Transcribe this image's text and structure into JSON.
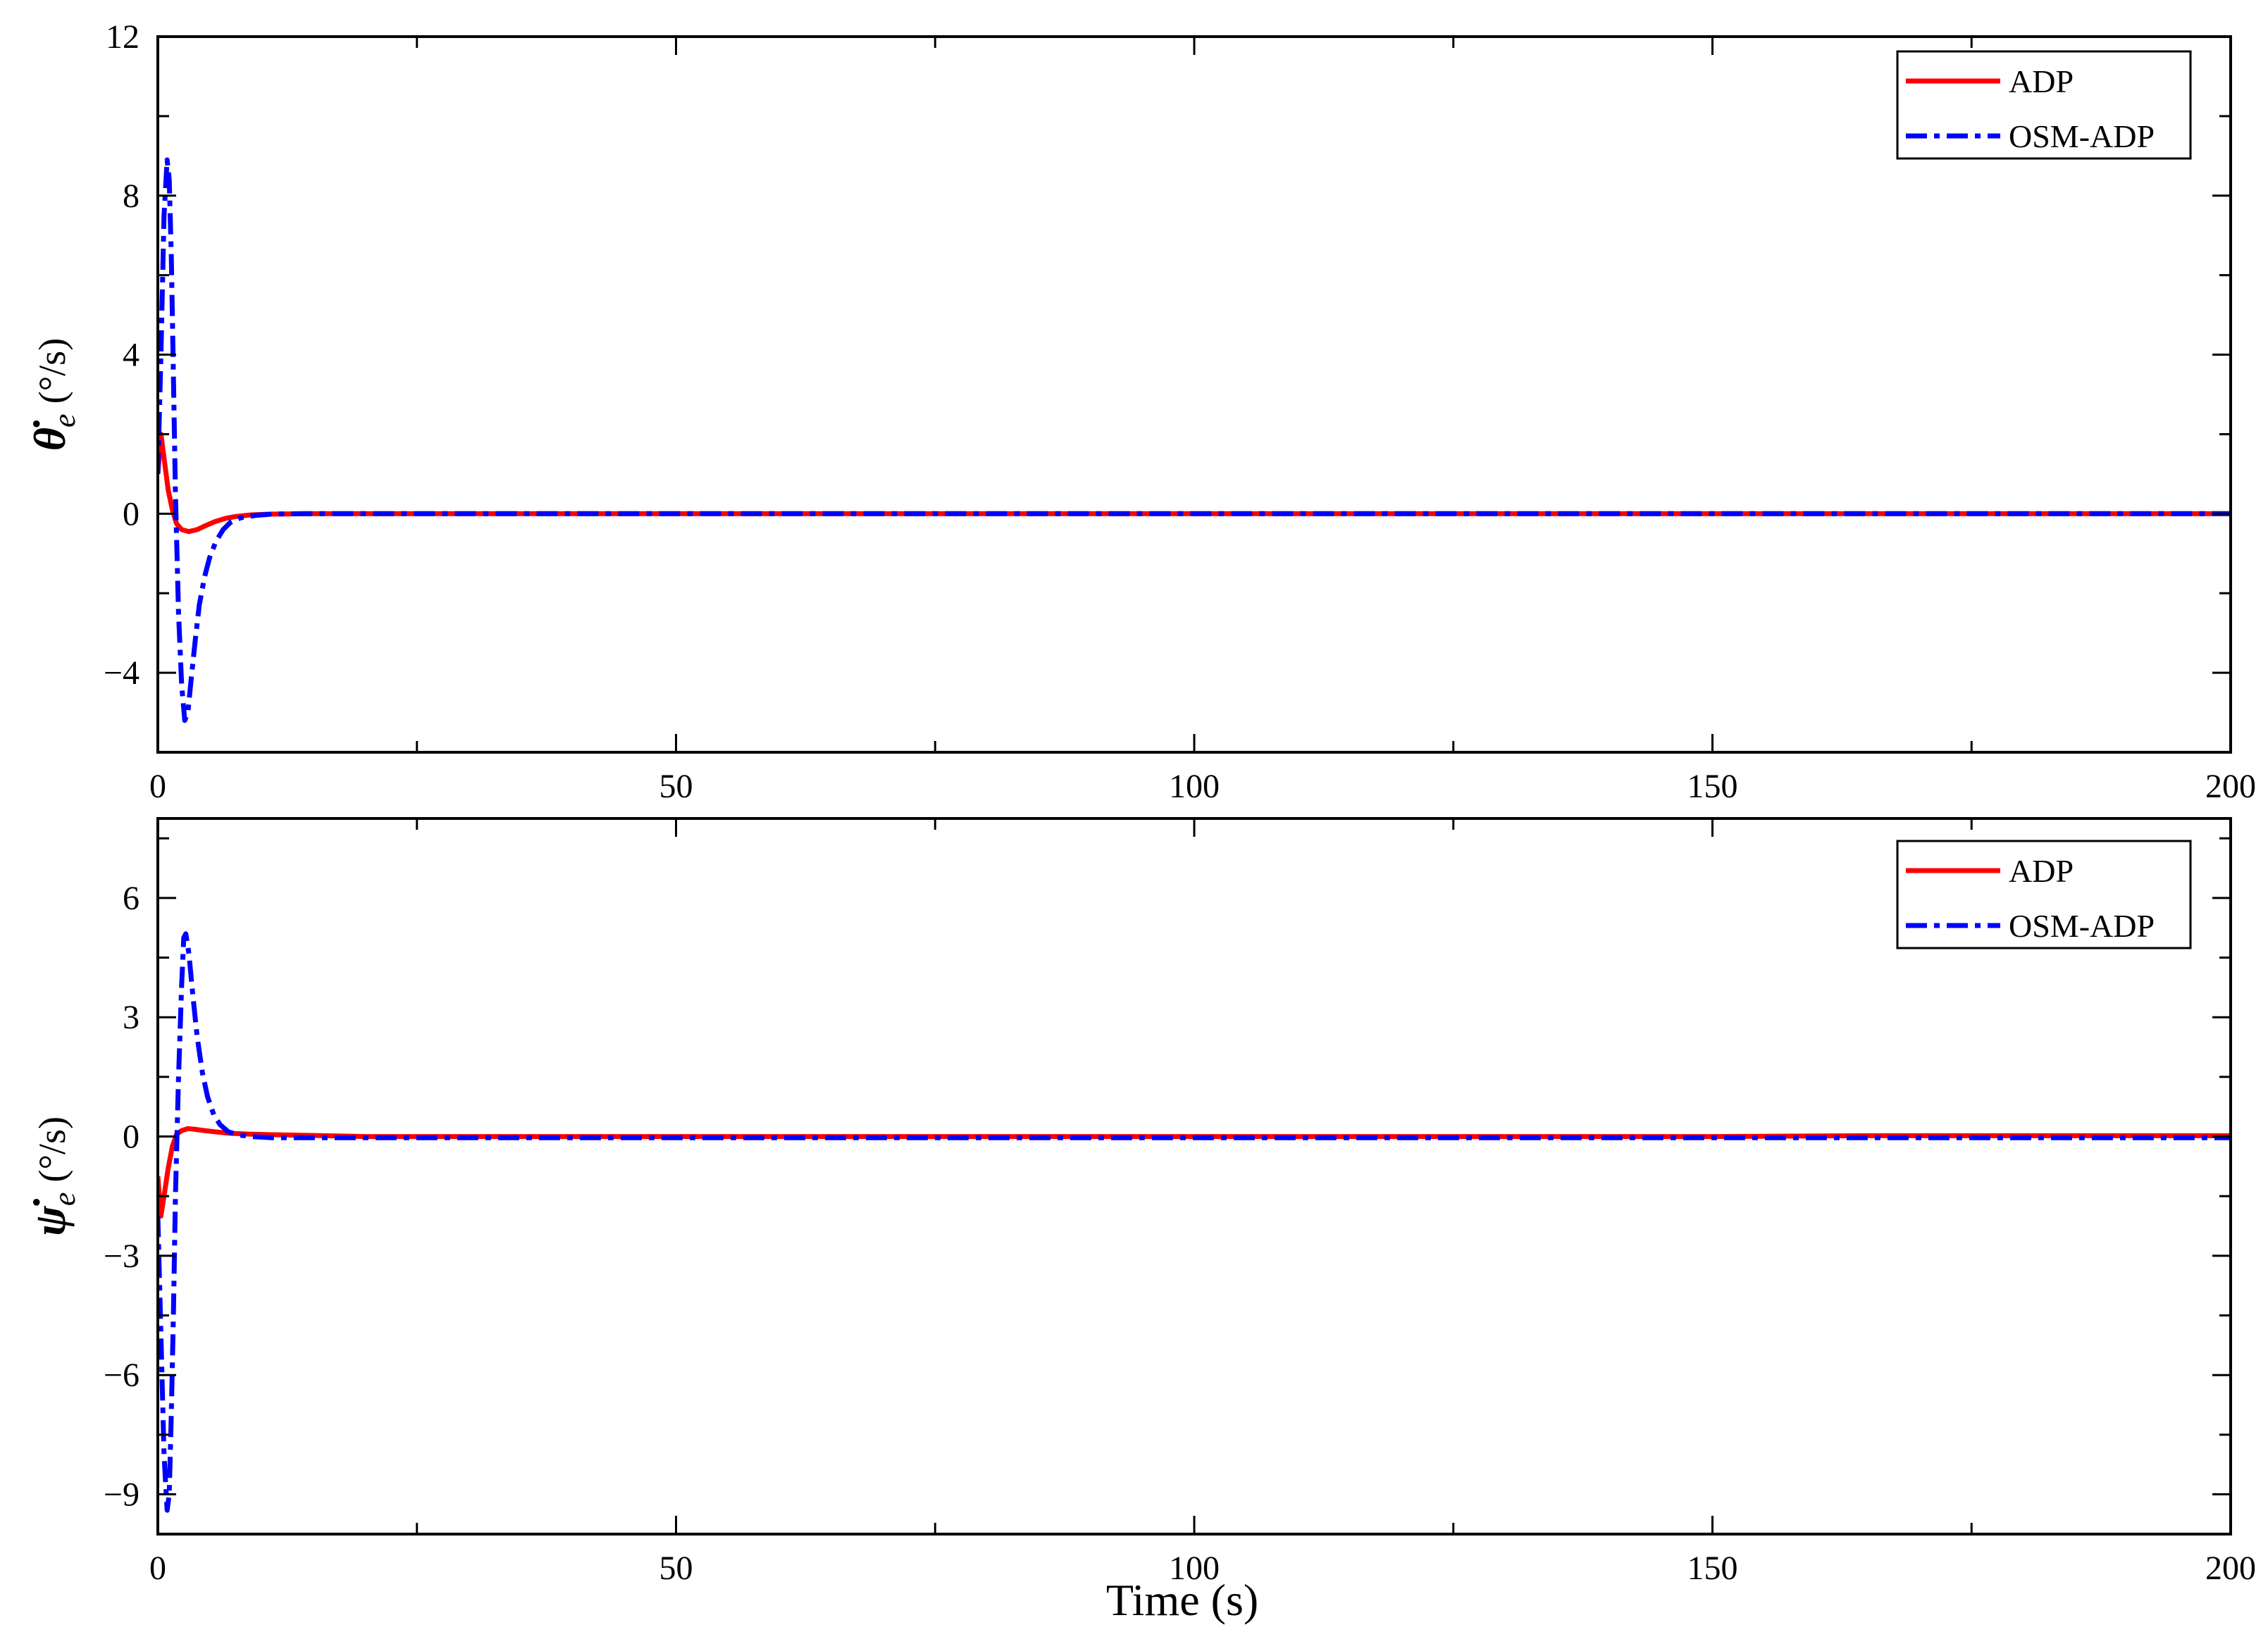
{
  "chart_data": [
    {
      "type": "line",
      "ylabel_symbol": "θ̇",
      "ylabel_subscript": "e",
      "ylabel_unit": "(°/s)",
      "xlim": [
        0,
        200
      ],
      "ylim": [
        -6,
        12
      ],
      "xticks": [
        0,
        50,
        100,
        150,
        200
      ],
      "yticks": [
        -4,
        0,
        4,
        8,
        12
      ],
      "xtick_labels": [
        "0",
        "50",
        "100",
        "150",
        "200"
      ],
      "ytick_labels": [
        "−4",
        "0",
        "4",
        "8",
        "12"
      ],
      "legend_position": "top-right",
      "series": [
        {
          "name": "ADP",
          "color": "#ff0000",
          "style": "solid",
          "x": [
            0,
            0.3,
            0.6,
            1.0,
            1.4,
            1.8,
            2.3,
            3.0,
            3.8,
            4.6,
            5.5,
            6.5,
            7.5,
            9,
            11,
            15,
            20,
            50,
            100,
            150,
            200
          ],
          "y": [
            1.0,
            2.0,
            1.4,
            0.6,
            0.1,
            -0.25,
            -0.4,
            -0.45,
            -0.4,
            -0.3,
            -0.2,
            -0.12,
            -0.07,
            -0.03,
            -0.01,
            0,
            0,
            0,
            0,
            0,
            0
          ]
        },
        {
          "name": "OSM-ADP",
          "color": "#0000ff",
          "style": "dashdot",
          "x": [
            0,
            0.3,
            0.6,
            0.9,
            1.1,
            1.3,
            1.5,
            1.7,
            2.0,
            2.3,
            2.6,
            2.9,
            3.2,
            3.6,
            4.0,
            4.5,
            5.0,
            5.6,
            6.3,
            7.0,
            8.0,
            9.5,
            11,
            14,
            20,
            50,
            100,
            150,
            200
          ],
          "y": [
            1.0,
            4.0,
            7.5,
            8.9,
            8.4,
            6.5,
            3.5,
            0.5,
            -2.5,
            -4.3,
            -5.2,
            -5.0,
            -4.2,
            -3.2,
            -2.3,
            -1.6,
            -1.1,
            -0.7,
            -0.4,
            -0.22,
            -0.1,
            -0.04,
            -0.01,
            0,
            0,
            0,
            0,
            0,
            0
          ]
        }
      ]
    },
    {
      "type": "line",
      "ylabel_symbol": "ψ̇",
      "ylabel_subscript": "e",
      "ylabel_unit": "(°/s)",
      "xlabel": "Time (s)",
      "xlim": [
        0,
        200
      ],
      "ylim": [
        -10,
        8
      ],
      "xticks": [
        0,
        50,
        100,
        150,
        200
      ],
      "yticks": [
        -9,
        -6,
        -3,
        0,
        3,
        6
      ],
      "xtick_labels": [
        "0",
        "50",
        "100",
        "150",
        "200"
      ],
      "ytick_labels": [
        "−9",
        "−6",
        "−3",
        "0",
        "3",
        "6"
      ],
      "legend_position": "top-right",
      "series": [
        {
          "name": "ADP",
          "color": "#ff0000",
          "style": "solid",
          "x": [
            0,
            0.3,
            0.6,
            1.0,
            1.4,
            1.8,
            2.3,
            2.9,
            3.6,
            4.5,
            5.5,
            7,
            9,
            12,
            16,
            20,
            50,
            100,
            150,
            165,
            200
          ],
          "y": [
            -1.0,
            -2.0,
            -1.5,
            -0.8,
            -0.25,
            0.05,
            0.15,
            0.2,
            0.18,
            0.15,
            0.12,
            0.08,
            0.06,
            0.04,
            0.02,
            0,
            0,
            0,
            0,
            0.02,
            0.02
          ]
        },
        {
          "name": "OSM-ADP",
          "color": "#0000ff",
          "style": "dashdot",
          "x": [
            0,
            0.3,
            0.6,
            0.9,
            1.1,
            1.3,
            1.5,
            1.7,
            2.0,
            2.3,
            2.5,
            2.7,
            3.0,
            3.4,
            3.8,
            4.3,
            4.8,
            5.4,
            6.0,
            6.8,
            7.8,
            9,
            11,
            14,
            20,
            50,
            100,
            150,
            200
          ],
          "y": [
            -2.0,
            -5.0,
            -8.0,
            -9.4,
            -9.0,
            -7.0,
            -4.5,
            -1.5,
            1.5,
            3.8,
            5.0,
            5.1,
            4.6,
            3.5,
            2.5,
            1.6,
            1.0,
            0.55,
            0.3,
            0.12,
            0.04,
            0,
            -0.03,
            -0.03,
            -0.03,
            -0.03,
            -0.03,
            -0.03,
            -0.03
          ]
        }
      ]
    }
  ]
}
